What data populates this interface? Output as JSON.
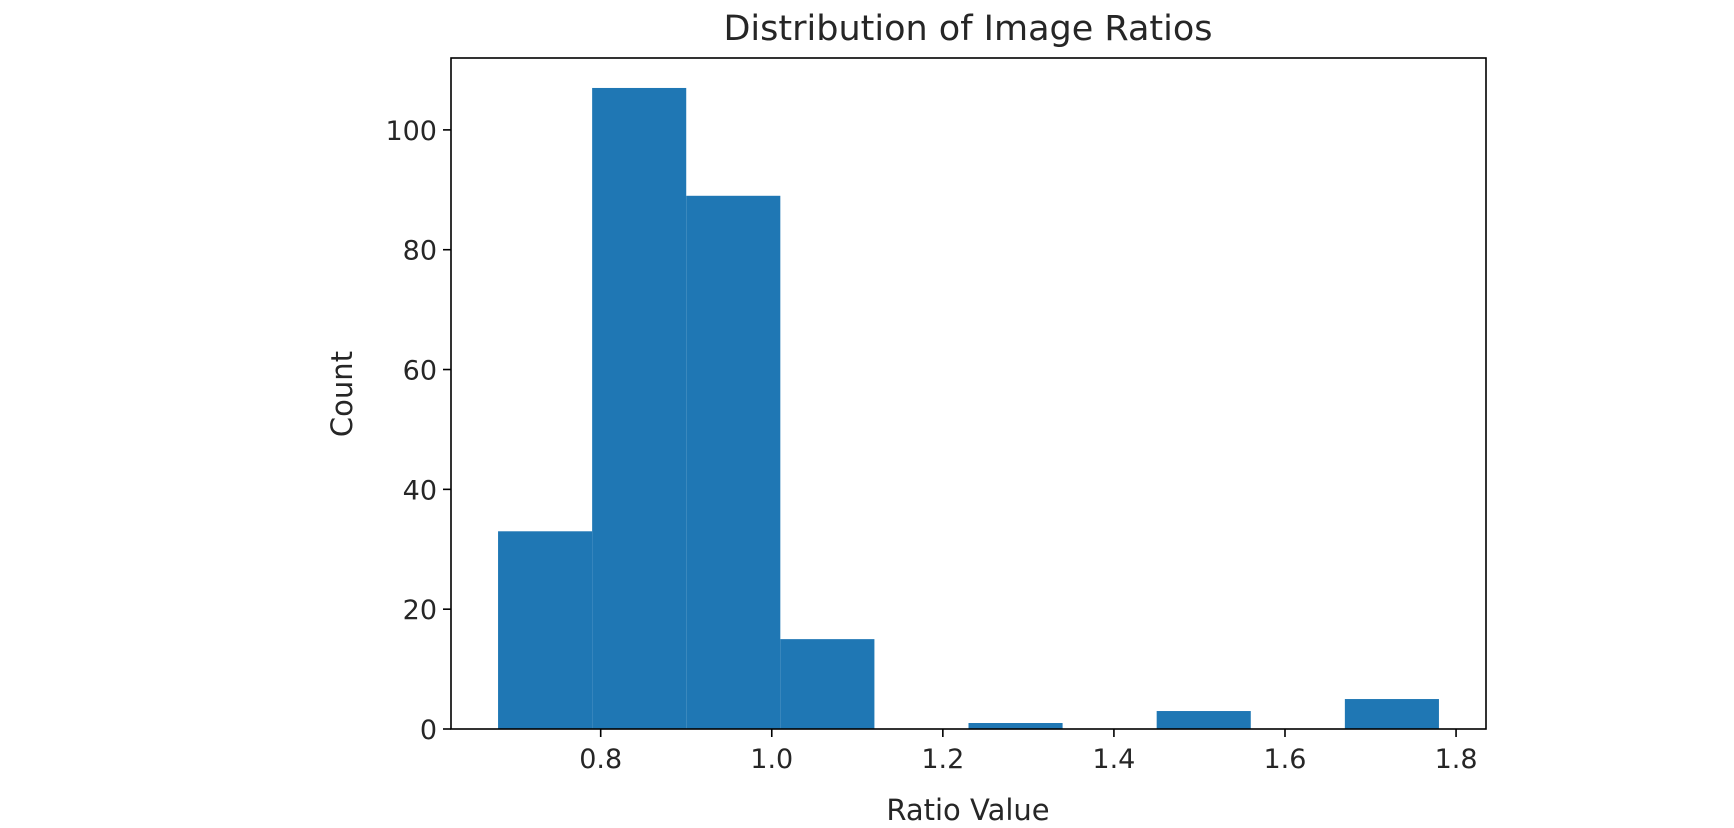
{
  "chart_data": {
    "type": "bar",
    "histogram": true,
    "title": "Distribution of Image Ratios",
    "xlabel": "Ratio Value",
    "ylabel": "Count",
    "bins": [
      {
        "start": 0.68,
        "end": 0.79,
        "count": 33
      },
      {
        "start": 0.79,
        "end": 0.9,
        "count": 107
      },
      {
        "start": 0.9,
        "end": 1.01,
        "count": 89
      },
      {
        "start": 1.01,
        "end": 1.12,
        "count": 15
      },
      {
        "start": 1.12,
        "end": 1.23,
        "count": 0
      },
      {
        "start": 1.23,
        "end": 1.34,
        "count": 1
      },
      {
        "start": 1.34,
        "end": 1.45,
        "count": 0
      },
      {
        "start": 1.45,
        "end": 1.56,
        "count": 3
      },
      {
        "start": 1.56,
        "end": 1.67,
        "count": 0
      },
      {
        "start": 1.67,
        "end": 1.78,
        "count": 5
      }
    ],
    "xlim": [
      0.625,
      1.835
    ],
    "ylim": [
      0,
      112
    ],
    "xticks": [
      0.8,
      1.0,
      1.2,
      1.4,
      1.6,
      1.8
    ],
    "xtick_labels": [
      "0.8",
      "1.0",
      "1.2",
      "1.4",
      "1.6",
      "1.8"
    ],
    "yticks": [
      0,
      20,
      40,
      60,
      80,
      100
    ],
    "ytick_labels": [
      "0",
      "20",
      "40",
      "60",
      "80",
      "100"
    ],
    "grid": false,
    "bar_color": "#1f77b4"
  }
}
